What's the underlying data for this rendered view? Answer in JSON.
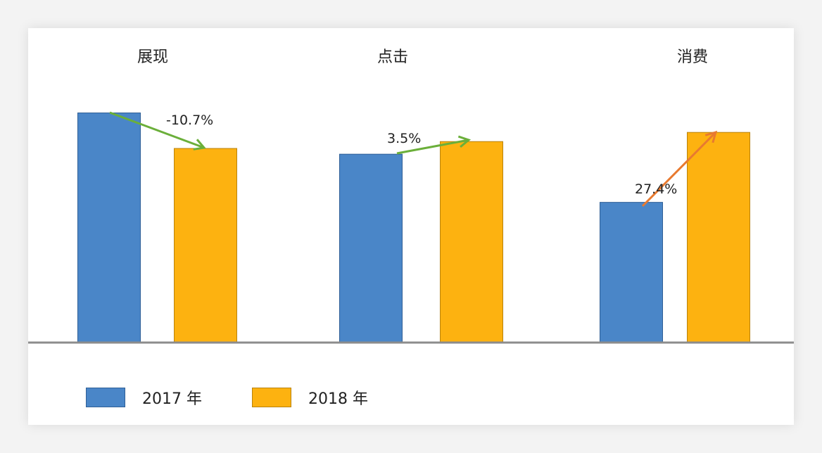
{
  "chart_data": {
    "type": "bar",
    "categories": [
      "展现",
      "点击",
      "消费"
    ],
    "series": [
      {
        "name": "2017 年",
        "values": [
          100,
          82,
          61
        ],
        "color": "#4A86C8",
        "border": "#2F5F96"
      },
      {
        "name": "2018 年",
        "values": [
          84.5,
          87.5,
          91.5
        ],
        "color": "#FDB210",
        "border": "#B9820C"
      }
    ],
    "changes": [
      {
        "label": "-10.7%",
        "color": "#6BAF3A"
      },
      {
        "label": "3.5%",
        "color": "#6BAF3A"
      },
      {
        "label": "27.4%",
        "color": "#E87A30"
      }
    ],
    "ylim": [
      0,
      110
    ],
    "grid": false,
    "legend": "bottom-left",
    "baseline_color": "#8C8C8C"
  }
}
